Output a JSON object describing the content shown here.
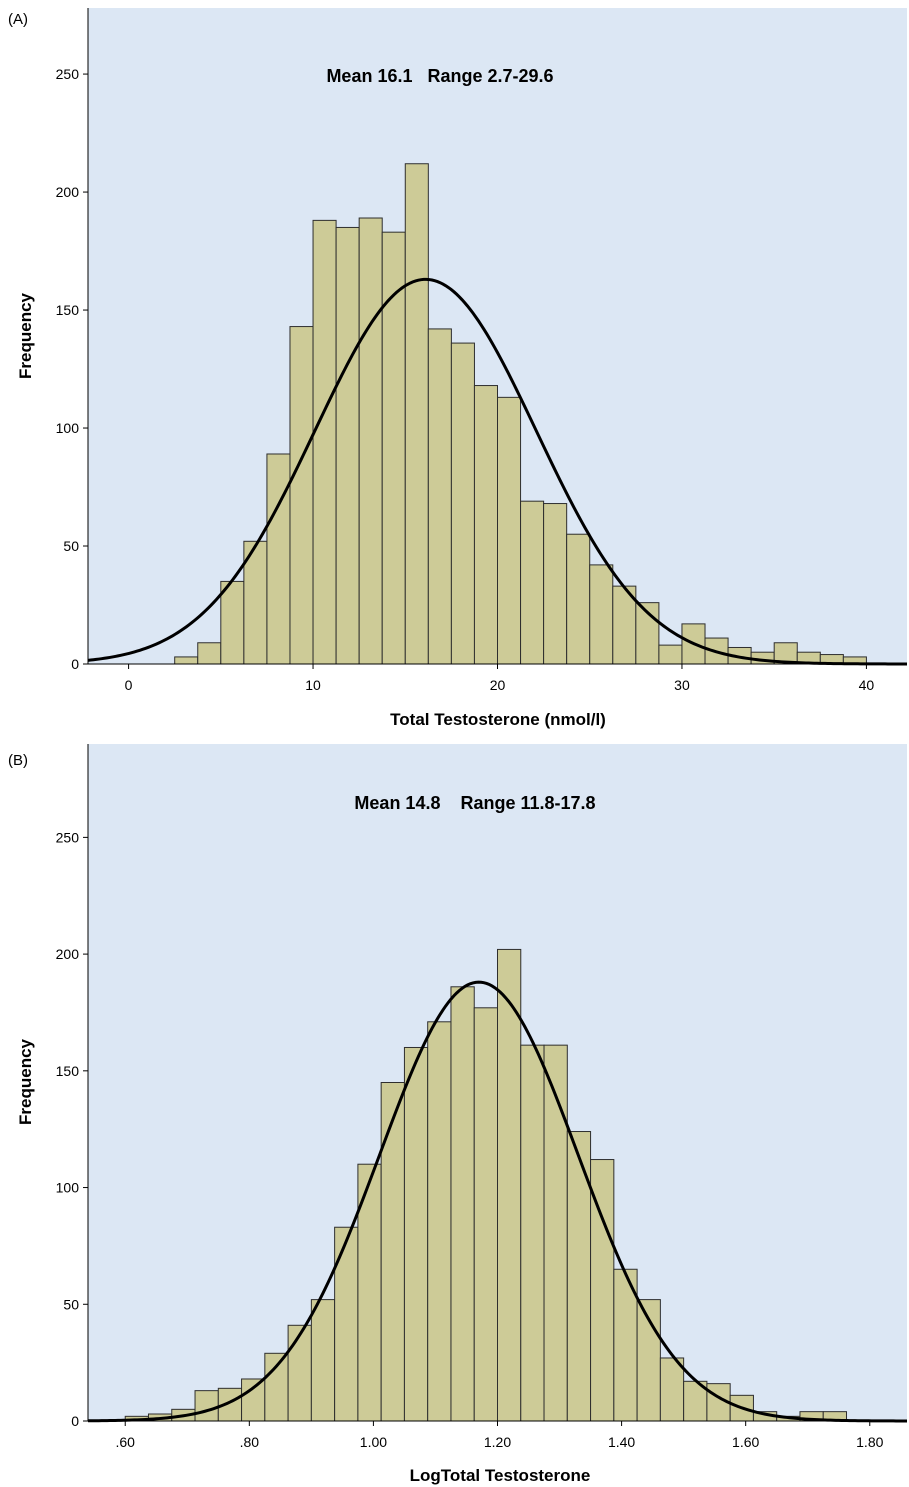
{
  "chart_data": [
    {
      "panel_label": "(A)",
      "type": "bar",
      "subtype": "histogram with normal curve",
      "annotation": "Mean 16.1   Range 2.7-29.6",
      "xlabel": "Total Testosterone (nmol/l)",
      "ylabel": "Frequency",
      "xlim": [
        -2.2,
        42.2
      ],
      "ylim": [
        0,
        278
      ],
      "xticks": [
        0,
        10,
        20,
        30,
        40
      ],
      "xtick_labels": [
        "0",
        "10",
        "20",
        "30",
        "40"
      ],
      "yticks": [
        0,
        50,
        100,
        150,
        200,
        250
      ],
      "ytick_labels": [
        "0",
        "50",
        "100",
        "150",
        "200",
        "250"
      ],
      "bin_width": 1.25,
      "bins": [
        {
          "x0": 2.5,
          "count": 3
        },
        {
          "x0": 3.75,
          "count": 9
        },
        {
          "x0": 5.0,
          "count": 35
        },
        {
          "x0": 6.25,
          "count": 52
        },
        {
          "x0": 7.5,
          "count": 89
        },
        {
          "x0": 8.75,
          "count": 143
        },
        {
          "x0": 10.0,
          "count": 188
        },
        {
          "x0": 11.25,
          "count": 185
        },
        {
          "x0": 12.5,
          "count": 189
        },
        {
          "x0": 13.75,
          "count": 183
        },
        {
          "x0": 15.0,
          "count": 212
        },
        {
          "x0": 16.25,
          "count": 142
        },
        {
          "x0": 17.5,
          "count": 136
        },
        {
          "x0": 18.75,
          "count": 118
        },
        {
          "x0": 20.0,
          "count": 113
        },
        {
          "x0": 21.25,
          "count": 69
        },
        {
          "x0": 22.5,
          "count": 68
        },
        {
          "x0": 23.75,
          "count": 55
        },
        {
          "x0": 25.0,
          "count": 42
        },
        {
          "x0": 26.25,
          "count": 33
        },
        {
          "x0": 27.5,
          "count": 26
        },
        {
          "x0": 28.75,
          "count": 8
        },
        {
          "x0": 30.0,
          "count": 17
        },
        {
          "x0": 31.25,
          "count": 11
        },
        {
          "x0": 32.5,
          "count": 7
        },
        {
          "x0": 33.75,
          "count": 5
        },
        {
          "x0": 35.0,
          "count": 9
        },
        {
          "x0": 36.25,
          "count": 5
        },
        {
          "x0": 37.5,
          "count": 4
        },
        {
          "x0": 38.75,
          "count": 3
        }
      ],
      "normal_curve": {
        "mean": 16.1,
        "sd": 6.0,
        "peak": 163
      },
      "colors": {
        "background": "#dce7f4",
        "bar": "#cdcb97",
        "bar_edge": "#2e2e2e",
        "curve": "#000000"
      }
    },
    {
      "panel_label": "(B)",
      "type": "bar",
      "subtype": "histogram with normal curve",
      "annotation": "Mean 14.8    Range 11.8-17.8",
      "xlabel": "LogTotal Testosterone",
      "ylabel": "Frequency",
      "xlim": [
        0.54,
        1.86
      ],
      "ylim": [
        0,
        290
      ],
      "xticks": [
        0.6,
        0.8,
        1.0,
        1.2,
        1.4,
        1.6,
        1.8
      ],
      "xtick_labels": [
        ".60",
        ".80",
        "1.00",
        "1.20",
        "1.40",
        "1.60",
        "1.80"
      ],
      "yticks": [
        0,
        50,
        100,
        150,
        200,
        250
      ],
      "ytick_labels": [
        "0",
        "50",
        "100",
        "150",
        "200",
        "250"
      ],
      "bin_width": 0.0375,
      "bins": [
        {
          "x0": 0.6,
          "count": 2
        },
        {
          "x0": 0.6375,
          "count": 3
        },
        {
          "x0": 0.675,
          "count": 5
        },
        {
          "x0": 0.7125,
          "count": 13
        },
        {
          "x0": 0.75,
          "count": 14
        },
        {
          "x0": 0.7875,
          "count": 18
        },
        {
          "x0": 0.825,
          "count": 29
        },
        {
          "x0": 0.8625,
          "count": 41
        },
        {
          "x0": 0.9,
          "count": 52
        },
        {
          "x0": 0.9375,
          "count": 83
        },
        {
          "x0": 0.975,
          "count": 110
        },
        {
          "x0": 1.0125,
          "count": 145
        },
        {
          "x0": 1.05,
          "count": 160
        },
        {
          "x0": 1.0875,
          "count": 171
        },
        {
          "x0": 1.125,
          "count": 186
        },
        {
          "x0": 1.1625,
          "count": 177
        },
        {
          "x0": 1.2,
          "count": 202
        },
        {
          "x0": 1.2375,
          "count": 161
        },
        {
          "x0": 1.275,
          "count": 161
        },
        {
          "x0": 1.3125,
          "count": 124
        },
        {
          "x0": 1.35,
          "count": 112
        },
        {
          "x0": 1.3875,
          "count": 65
        },
        {
          "x0": 1.425,
          "count": 52
        },
        {
          "x0": 1.4625,
          "count": 27
        },
        {
          "x0": 1.5,
          "count": 17
        },
        {
          "x0": 1.5375,
          "count": 16
        },
        {
          "x0": 1.575,
          "count": 11
        },
        {
          "x0": 1.6125,
          "count": 4
        },
        {
          "x0": 1.65,
          "count": 2
        },
        {
          "x0": 1.6875,
          "count": 4
        },
        {
          "x0": 1.725,
          "count": 4
        }
      ],
      "normal_curve": {
        "mean": 1.17,
        "sd": 0.16,
        "peak": 188
      },
      "colors": {
        "background": "#dce7f4",
        "bar": "#cdcb97",
        "bar_edge": "#2e2e2e",
        "curve": "#000000"
      }
    }
  ]
}
